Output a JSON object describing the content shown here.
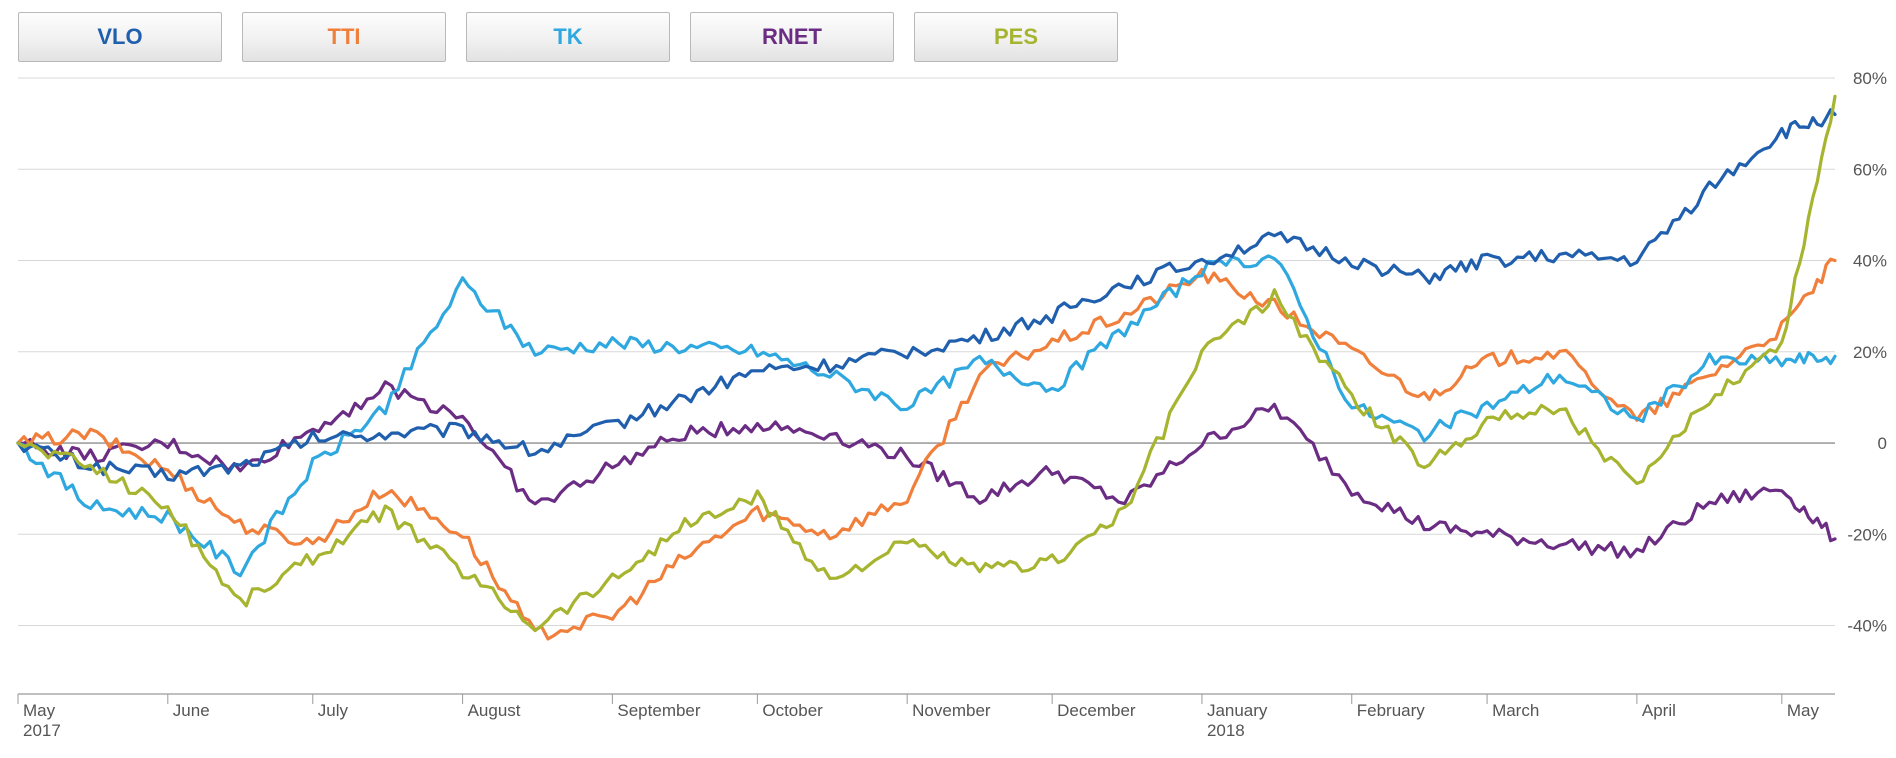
{
  "chart_data": {
    "type": "line",
    "y_unit": "%",
    "ylim": [
      -55,
      80
    ],
    "y_ticks": [
      80,
      60,
      40,
      20,
      0,
      -20,
      -40
    ],
    "y_tick_labels": [
      "80%",
      "60%",
      "40%",
      "20%",
      "0",
      "-20%",
      "-40%"
    ],
    "x_tick_labels": [
      {
        "label": "May",
        "sub": "2017"
      },
      {
        "label": "June",
        "sub": ""
      },
      {
        "label": "July",
        "sub": ""
      },
      {
        "label": "August",
        "sub": ""
      },
      {
        "label": "September",
        "sub": ""
      },
      {
        "label": "October",
        "sub": ""
      },
      {
        "label": "November",
        "sub": ""
      },
      {
        "label": "December",
        "sub": ""
      },
      {
        "label": "January",
        "sub": "2018"
      },
      {
        "label": "February",
        "sub": ""
      },
      {
        "label": "March",
        "sub": ""
      },
      {
        "label": "April",
        "sub": ""
      },
      {
        "label": "May",
        "sub": ""
      }
    ],
    "x": [
      "2017-05-01",
      "2017-05-16",
      "2017-06-01",
      "2017-06-16",
      "2017-07-01",
      "2017-07-16",
      "2017-08-01",
      "2017-08-16",
      "2017-09-01",
      "2017-09-16",
      "2017-10-01",
      "2017-10-16",
      "2017-11-01",
      "2017-11-16",
      "2017-12-01",
      "2017-12-16",
      "2018-01-01",
      "2018-01-16",
      "2018-02-01",
      "2018-02-16",
      "2018-03-01",
      "2018-03-16",
      "2018-04-01",
      "2018-04-16",
      "2018-05-01",
      "2018-05-12"
    ],
    "grid": true,
    "legend_position": "top-left",
    "series": [
      {
        "name": "VLO",
        "color": "#1f5fae",
        "values": [
          0,
          -5,
          -7,
          -5,
          1,
          2,
          3,
          -2,
          4,
          10,
          16,
          17,
          20,
          23,
          28,
          35,
          40,
          45,
          40,
          36,
          40,
          41,
          40,
          56,
          68,
          72
        ]
      },
      {
        "name": "TTI",
        "color": "#f07f3c",
        "values": [
          0,
          2,
          -6,
          -18,
          -22,
          -10,
          -20,
          -42,
          -38,
          -25,
          -15,
          -20,
          -12,
          15,
          22,
          28,
          37,
          30,
          20,
          10,
          18,
          20,
          5,
          15,
          25,
          40
        ]
      },
      {
        "name": "TK",
        "color": "#2fa8e0",
        "values": [
          0,
          -14,
          -16,
          -28,
          -5,
          8,
          35,
          20,
          22,
          21,
          20,
          15,
          8,
          18,
          12,
          25,
          38,
          41,
          8,
          2,
          8,
          15,
          5,
          18,
          18,
          19
        ]
      },
      {
        "name": "RNET",
        "color": "#6b2d84",
        "values": [
          0,
          -3,
          0,
          -6,
          3,
          12,
          6,
          -14,
          -5,
          2,
          4,
          2,
          -3,
          -12,
          -6,
          -13,
          0,
          8,
          -10,
          -18,
          -20,
          -22,
          -24,
          -13,
          -10,
          -21
        ]
      },
      {
        "name": "PES",
        "color": "#a6b42f",
        "values": [
          0,
          -5,
          -14,
          -35,
          -25,
          -15,
          -28,
          -40,
          -30,
          -18,
          -12,
          -30,
          -22,
          -28,
          -26,
          -15,
          20,
          32,
          10,
          -5,
          5,
          8,
          -10,
          10,
          22,
          76
        ]
      }
    ]
  }
}
